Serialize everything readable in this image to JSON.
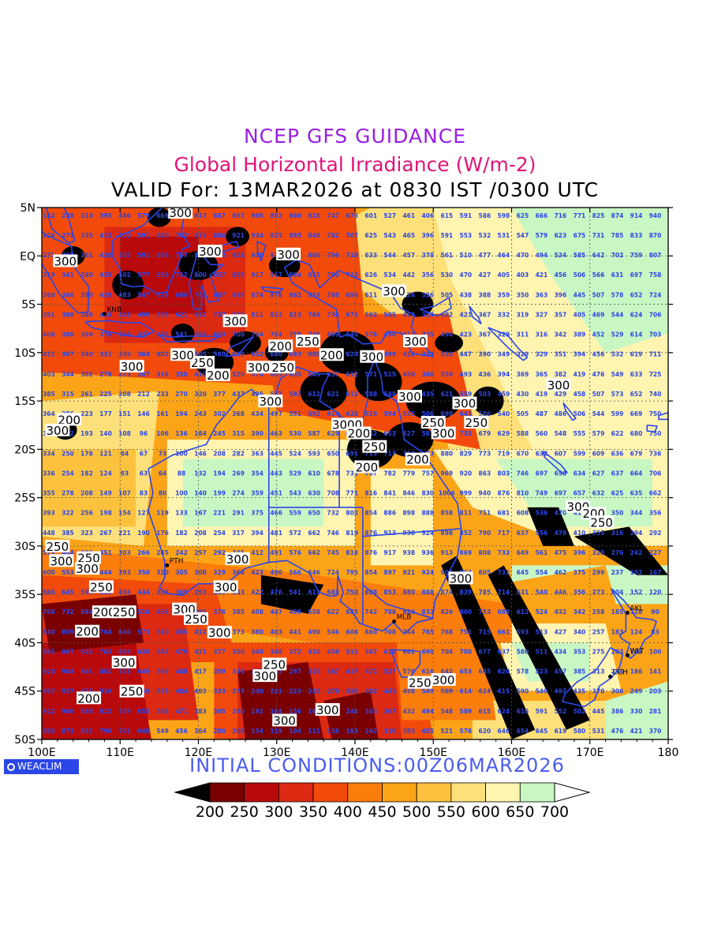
{
  "header": {
    "title": "NCEP GFS GUIDANCE",
    "subtitle": "Global Horizontal Irradiance (W/m-2)",
    "valid": "VALID For: 13MAR2026 at 0830 IST /0300 UTC"
  },
  "footer": {
    "init": "INITIAL CONDITIONS:00Z06MAR2026",
    "logo": "WEACLIM"
  },
  "colors": {
    "c200": "#000000",
    "c250": "#7a0000",
    "c300": "#b80a0a",
    "c350": "#dc2a12",
    "c400": "#f24a0a",
    "c450": "#fb7d0c",
    "c500": "#fca417",
    "c550": "#fdc23d",
    "c600": "#fde07a",
    "c650": "#fff4b0",
    "c700": "#c9f7c4",
    "c750": "#ffffff",
    "coast": "#2b46e8",
    "numbers": "#2b46e8"
  },
  "chart_data": {
    "type": "heatmap",
    "title": "NCEP GFS GUIDANCE",
    "subtitle": "Global Horizontal Irradiance (W/m-2)",
    "x_ticks": [
      "100E",
      "110E",
      "120E",
      "130E",
      "140E",
      "150E",
      "160E",
      "170E",
      "180"
    ],
    "y_ticks": [
      "5N",
      "EQ",
      "5S",
      "10S",
      "15S",
      "20S",
      "25S",
      "30S",
      "35S",
      "40S",
      "45S",
      "50S"
    ],
    "x_range_deg_east": [
      100,
      180
    ],
    "y_range_deg_north": [
      5,
      -50
    ],
    "colorbar": {
      "levels": [
        200,
        250,
        300,
        350,
        400,
        450,
        500,
        550,
        600,
        650,
        700
      ],
      "labels": [
        "200",
        "250",
        "300",
        "350",
        "400",
        "450",
        "500",
        "550",
        "600",
        "650",
        "700"
      ]
    },
    "contour_labels": [
      {
        "text": "300",
        "lon": 117.7,
        "lat": 4.5
      },
      {
        "text": "300",
        "lon": 121.5,
        "lat": 0.5
      },
      {
        "text": "300",
        "lon": 103.0,
        "lat": -0.5
      },
      {
        "text": "300",
        "lon": 131.5,
        "lat": 0.2
      },
      {
        "text": "300",
        "lon": 145.0,
        "lat": -3.6
      },
      {
        "text": "300",
        "lon": 124.7,
        "lat": -6.7
      },
      {
        "text": "300",
        "lon": 147.7,
        "lat": -8.8
      },
      {
        "text": "300",
        "lon": 142.2,
        "lat": -10.4
      },
      {
        "text": "250",
        "lon": 134.0,
        "lat": -8.8
      },
      {
        "text": "200",
        "lon": 130.5,
        "lat": -9.3
      },
      {
        "text": "200",
        "lon": 137.0,
        "lat": -10.2
      },
      {
        "text": "250",
        "lon": 120.5,
        "lat": -11.0
      },
      {
        "text": "300",
        "lon": 118.0,
        "lat": -10.2
      },
      {
        "text": "300",
        "lon": 127.7,
        "lat": -11.5
      },
      {
        "text": "250",
        "lon": 130.8,
        "lat": -11.5
      },
      {
        "text": "200",
        "lon": 122.5,
        "lat": -12.3
      },
      {
        "text": "300",
        "lon": 111.5,
        "lat": -11.4
      },
      {
        "text": "300",
        "lon": 166.0,
        "lat": -13.3
      },
      {
        "text": "300",
        "lon": 129.2,
        "lat": -15.0
      },
      {
        "text": "300",
        "lon": 147.0,
        "lat": -14.5
      },
      {
        "text": "300",
        "lon": 154.0,
        "lat": -15.2
      },
      {
        "text": "200",
        "lon": 103.5,
        "lat": -16.9
      },
      {
        "text": "300",
        "lon": 102.0,
        "lat": -18.0
      },
      {
        "text": "3000",
        "lon": 139.0,
        "lat": -17.4
      },
      {
        "text": "200",
        "lon": 140.5,
        "lat": -18.3
      },
      {
        "text": "250",
        "lon": 150.0,
        "lat": -17.2
      },
      {
        "text": "300",
        "lon": 151.3,
        "lat": -18.3
      },
      {
        "text": "250",
        "lon": 155.5,
        "lat": -17.2
      },
      {
        "text": "250",
        "lon": 142.5,
        "lat": -19.7
      },
      {
        "text": "200",
        "lon": 141.5,
        "lat": -21.8
      },
      {
        "text": "200",
        "lon": 148.0,
        "lat": -21.0
      },
      {
        "text": "300",
        "lon": 168.5,
        "lat": -25.9
      },
      {
        "text": "200",
        "lon": 170.5,
        "lat": -26.6
      },
      {
        "text": "250",
        "lon": 171.5,
        "lat": -27.5
      },
      {
        "text": "250",
        "lon": 102.0,
        "lat": -30.0
      },
      {
        "text": "300",
        "lon": 102.5,
        "lat": -31.5
      },
      {
        "text": "250",
        "lon": 106.0,
        "lat": -31.2
      },
      {
        "text": "300",
        "lon": 105.8,
        "lat": -32.3
      },
      {
        "text": "300",
        "lon": 125.0,
        "lat": -31.3
      },
      {
        "text": "300",
        "lon": 153.5,
        "lat": -33.3
      },
      {
        "text": "250",
        "lon": 107.6,
        "lat": -34.2
      },
      {
        "text": "300",
        "lon": 123.5,
        "lat": -34.2
      },
      {
        "text": "200",
        "lon": 108.0,
        "lat": -36.8
      },
      {
        "text": "250",
        "lon": 110.5,
        "lat": -36.8
      },
      {
        "text": "300",
        "lon": 118.2,
        "lat": -36.5
      },
      {
        "text": "250",
        "lon": 119.7,
        "lat": -37.5
      },
      {
        "text": "200",
        "lon": 105.8,
        "lat": -38.8
      },
      {
        "text": "300",
        "lon": 122.7,
        "lat": -38.9
      },
      {
        "text": "300",
        "lon": 110.5,
        "lat": -42.0
      },
      {
        "text": "250",
        "lon": 129.7,
        "lat": -42.2
      },
      {
        "text": "300",
        "lon": 128.5,
        "lat": -43.4
      },
      {
        "text": "300",
        "lon": 151.3,
        "lat": -43.8
      },
      {
        "text": "250",
        "lon": 148.3,
        "lat": -44.1
      },
      {
        "text": "250",
        "lon": 111.5,
        "lat": -45.0
      },
      {
        "text": "200",
        "lon": 106.0,
        "lat": -45.7
      },
      {
        "text": "300",
        "lon": 136.5,
        "lat": -46.9
      },
      {
        "text": "300",
        "lon": 131.0,
        "lat": -48.0
      }
    ],
    "station_labels": [
      {
        "text": "KNB",
        "lon": 108.0,
        "lat": -6.0
      },
      {
        "text": "PTH",
        "lon": 116.0,
        "lat": -32.0
      },
      {
        "text": "MLB",
        "lon": 145.0,
        "lat": -37.8
      },
      {
        "text": "AKL",
        "lon": 174.8,
        "lat": -36.9
      },
      {
        "text": "WLT",
        "lon": 174.8,
        "lat": -41.3
      },
      {
        "text": "CCH",
        "lon": 172.6,
        "lat": -43.5
      }
    ]
  }
}
